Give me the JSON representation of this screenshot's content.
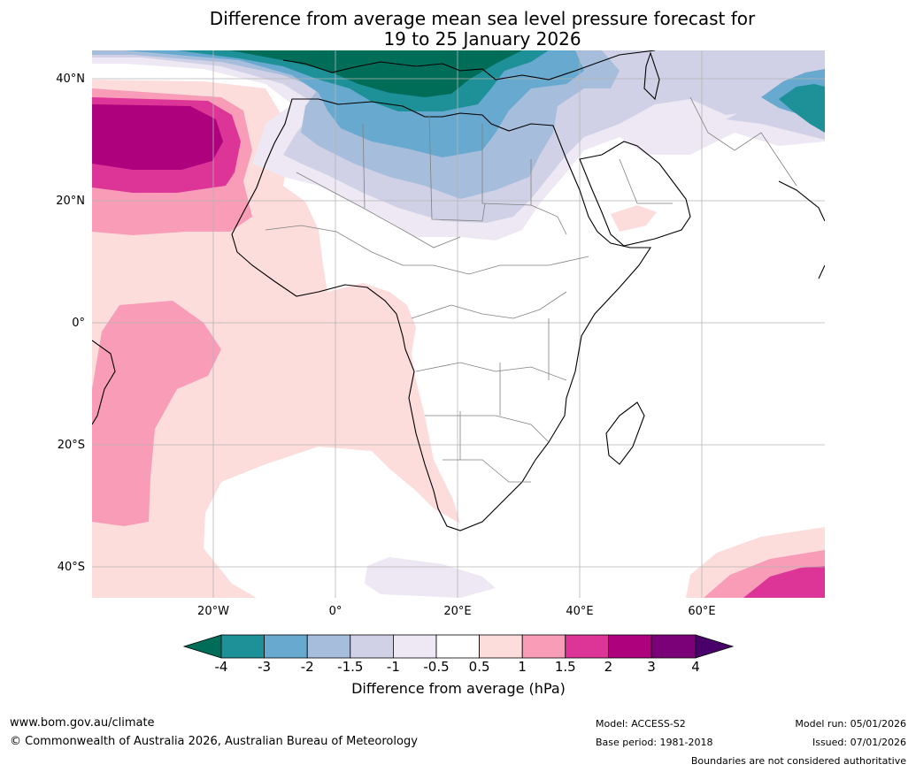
{
  "title": {
    "line1": "Difference from average mean sea level pressure forecast for",
    "line2": "19 to 25 January 2026"
  },
  "map": {
    "region": "Africa",
    "lat_labels": [
      "40°N",
      "20°N",
      "0°",
      "20°S",
      "40°S"
    ],
    "lon_labels": [
      "20°W",
      "0°",
      "20°E",
      "40°E",
      "60°E"
    ]
  },
  "colorbar": {
    "ticks": [
      "-4",
      "-3",
      "-2",
      "-1.5",
      "-1",
      "-0.5",
      "0.5",
      "1",
      "1.5",
      "2",
      "3",
      "4"
    ],
    "label": "Difference from average (hPa)",
    "colors": {
      "below_min": "#006d59",
      "neg_4_3": "#1e9198",
      "neg_3_2": "#67a9cf",
      "neg_2_15": "#a6bddb",
      "neg_15_1": "#d0d1e6",
      "neg_1_05": "#ede8f3",
      "neutral": "#ffffff",
      "pos_05_1": "#fddcdc",
      "pos_1_15": "#f89cb8",
      "pos_15_2": "#dd3497",
      "pos_2_3": "#ae017e",
      "pos_3_4": "#7a0177",
      "above_max": "#49006a"
    }
  },
  "footer": {
    "website": "www.bom.gov.au/climate",
    "copyright": "© Commonwealth of Australia 2026, Australian Bureau of Meteorology",
    "model": "Model: ACCESS-S2",
    "base_period": "Base period: 1981-2018",
    "model_run": "Model run: 05/01/2026",
    "issued": "Issued: 07/01/2026",
    "disclaimer": "Boundaries are not considered authoritative"
  }
}
